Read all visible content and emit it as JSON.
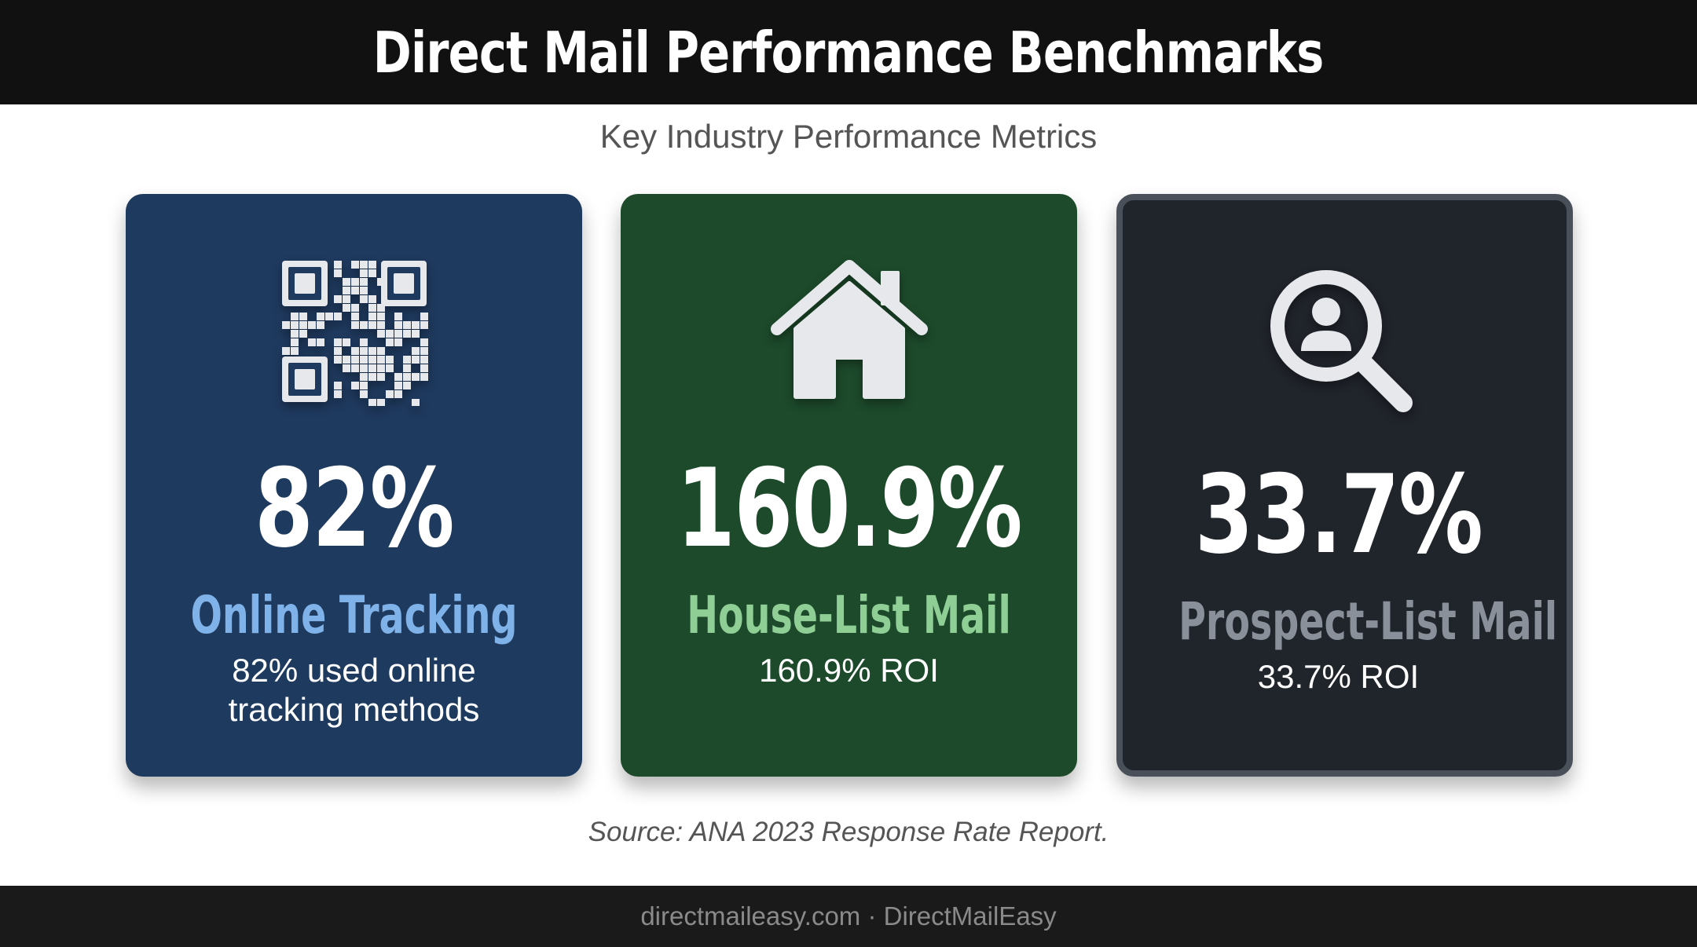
{
  "header": {
    "title": "Direct Mail Performance Benchmarks"
  },
  "subtitle": "Key Industry Performance Metrics",
  "cards": [
    {
      "icon": "qr-code-icon",
      "value": "82%",
      "label": "Online Tracking",
      "description": "82% used online tracking methods",
      "color": "#1f3a5f",
      "accent": "#7fb2e8"
    },
    {
      "icon": "house-icon",
      "value": "160.9%",
      "label": "House-List Mail",
      "description": "160.9% ROI",
      "color": "#1d4a2b",
      "accent": "#8fcf96"
    },
    {
      "icon": "magnifier-person-icon",
      "value": "33.7%",
      "label": "Prospect-List Mail",
      "description": "33.7% ROI",
      "color": "#20242b",
      "accent": "#8a9099"
    }
  ],
  "source": "Source: ANA 2023 Response Rate Report.",
  "footer": {
    "text": "directmaileasy.com · DirectMailEasy"
  }
}
